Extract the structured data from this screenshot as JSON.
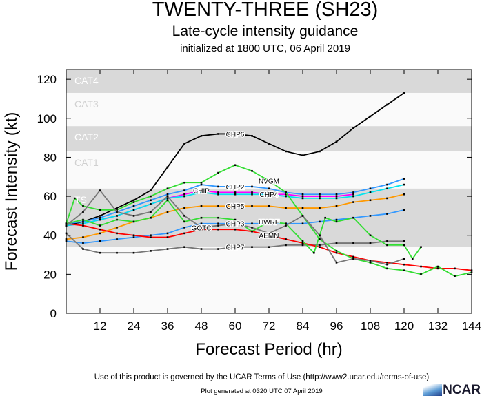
{
  "title": "TWENTY-THREE (SH23)",
  "subtitle": "Late-cycle intensity guidance",
  "initialized": "initialized at 1800 UTC, 06 April 2019",
  "footer": {
    "terms": "Use of this product is governed by the UCAR Terms of Use (http://www2.ucar.edu/terms-of-use)",
    "generated": "Plot generated at 0320 UTC   07 April 2019",
    "logo": "NCAR"
  },
  "chart_data": {
    "type": "line",
    "xlabel": "Forecast Period (hr)",
    "ylabel": "Forecast Intensity (kt)",
    "xlim": [
      0,
      144
    ],
    "ylim": [
      0,
      125
    ],
    "xticks": [
      12,
      24,
      36,
      48,
      60,
      72,
      84,
      96,
      108,
      120,
      132,
      144
    ],
    "yticks": [
      0,
      20,
      40,
      60,
      80,
      100,
      120
    ],
    "bands": [
      {
        "label": "TS",
        "from": 34,
        "to": 64,
        "color": "#d9d9d9"
      },
      {
        "label": "CAT1",
        "from": 64,
        "to": 83,
        "color": "#fafafa"
      },
      {
        "label": "CAT2",
        "from": 83,
        "to": 96,
        "color": "#d9d9d9"
      },
      {
        "label": "CAT3",
        "from": 96,
        "to": 113,
        "color": "#fafafa"
      },
      {
        "label": "CAT4",
        "from": 113,
        "to": 125,
        "color": "#d9d9d9"
      }
    ],
    "series": [
      {
        "name": "CHP6",
        "color": "#000000",
        "points": [
          [
            0,
            45
          ],
          [
            6,
            47
          ],
          [
            12,
            50
          ],
          [
            18,
            54
          ],
          [
            24,
            58
          ],
          [
            30,
            63
          ],
          [
            36,
            75
          ],
          [
            42,
            87
          ],
          [
            48,
            91
          ],
          [
            54,
            92
          ],
          [
            60,
            92
          ],
          [
            66,
            91
          ],
          [
            72,
            87
          ],
          [
            78,
            83
          ],
          [
            84,
            81
          ],
          [
            90,
            83
          ],
          [
            96,
            88
          ],
          [
            102,
            95
          ],
          [
            108,
            101
          ],
          [
            114,
            107
          ],
          [
            120,
            113
          ]
        ]
      },
      {
        "name": "CHP2",
        "color": "#3399ff",
        "points": [
          [
            0,
            46
          ],
          [
            6,
            47
          ],
          [
            12,
            49
          ],
          [
            18,
            52
          ],
          [
            24,
            55
          ],
          [
            30,
            58
          ],
          [
            36,
            61
          ],
          [
            42,
            63
          ],
          [
            48,
            66
          ],
          [
            54,
            65
          ],
          [
            60,
            65
          ],
          [
            66,
            65
          ],
          [
            72,
            64
          ],
          [
            78,
            62
          ],
          [
            84,
            61
          ],
          [
            90,
            61
          ],
          [
            96,
            61
          ],
          [
            102,
            62
          ],
          [
            108,
            64
          ],
          [
            114,
            66
          ],
          [
            120,
            69
          ]
        ]
      },
      {
        "name": "CHIP",
        "color": "#ff00ff",
        "points": [
          [
            0,
            45
          ],
          [
            6,
            46
          ],
          [
            12,
            48
          ],
          [
            18,
            50
          ],
          [
            24,
            53
          ],
          [
            30,
            56
          ],
          [
            36,
            59
          ],
          [
            42,
            61
          ],
          [
            48,
            63
          ],
          [
            54,
            62
          ],
          [
            60,
            62
          ],
          [
            66,
            62
          ],
          [
            72,
            61
          ],
          [
            78,
            61
          ],
          [
            84,
            60
          ],
          [
            90,
            60
          ],
          [
            96,
            60
          ],
          [
            102,
            61
          ]
        ]
      },
      {
        "name": "CHP4",
        "color": "#00e5ee",
        "points": [
          [
            0,
            45
          ],
          [
            6,
            46
          ],
          [
            12,
            48
          ],
          [
            18,
            50
          ],
          [
            24,
            53
          ],
          [
            30,
            56
          ],
          [
            36,
            59
          ],
          [
            42,
            60
          ],
          [
            48,
            62
          ],
          [
            54,
            61
          ],
          [
            60,
            61
          ],
          [
            66,
            61
          ],
          [
            72,
            61
          ],
          [
            78,
            60
          ],
          [
            84,
            59
          ],
          [
            90,
            59
          ],
          [
            96,
            59
          ],
          [
            102,
            60
          ],
          [
            108,
            62
          ],
          [
            114,
            64
          ],
          [
            120,
            66
          ]
        ]
      },
      {
        "name": "CHP5",
        "color": "#ff9900",
        "points": [
          [
            0,
            38
          ],
          [
            6,
            39
          ],
          [
            12,
            41
          ],
          [
            18,
            44
          ],
          [
            24,
            47
          ],
          [
            30,
            49
          ],
          [
            36,
            52
          ],
          [
            42,
            54
          ],
          [
            48,
            55
          ],
          [
            54,
            55
          ],
          [
            60,
            55
          ],
          [
            66,
            55
          ],
          [
            72,
            55
          ],
          [
            78,
            54
          ],
          [
            84,
            54
          ],
          [
            90,
            54
          ],
          [
            96,
            55
          ],
          [
            102,
            57
          ],
          [
            108,
            58
          ],
          [
            114,
            59
          ],
          [
            120,
            61
          ]
        ]
      },
      {
        "name": "CHP3",
        "color": "#3399ff",
        "points": [
          [
            0,
            37
          ],
          [
            6,
            36
          ],
          [
            12,
            37
          ],
          [
            18,
            38
          ],
          [
            24,
            39
          ],
          [
            30,
            40
          ],
          [
            36,
            41
          ],
          [
            42,
            44
          ],
          [
            48,
            46
          ],
          [
            54,
            46
          ],
          [
            60,
            46
          ],
          [
            66,
            46
          ],
          [
            72,
            46
          ],
          [
            78,
            46
          ],
          [
            84,
            46
          ],
          [
            90,
            47
          ],
          [
            96,
            48
          ],
          [
            102,
            49
          ],
          [
            108,
            50
          ],
          [
            114,
            51
          ],
          [
            120,
            53
          ]
        ]
      },
      {
        "name": "CHP7",
        "color": "#777777",
        "points": [
          [
            0,
            41
          ],
          [
            6,
            33
          ],
          [
            12,
            31
          ],
          [
            18,
            31
          ],
          [
            24,
            31
          ],
          [
            30,
            32
          ],
          [
            36,
            33
          ],
          [
            42,
            34
          ],
          [
            48,
            33
          ],
          [
            54,
            33
          ],
          [
            60,
            34
          ],
          [
            66,
            34
          ],
          [
            72,
            34
          ],
          [
            78,
            35
          ],
          [
            84,
            35
          ],
          [
            90,
            35
          ],
          [
            96,
            36
          ],
          [
            102,
            36
          ],
          [
            108,
            36
          ],
          [
            114,
            37
          ],
          [
            120,
            37
          ]
        ]
      },
      {
        "name": "AEMN",
        "color": "#ff0000",
        "points": [
          [
            0,
            46
          ],
          [
            6,
            45
          ],
          [
            12,
            43
          ],
          [
            18,
            41
          ],
          [
            24,
            40
          ],
          [
            30,
            39
          ],
          [
            36,
            39
          ],
          [
            42,
            41
          ],
          [
            48,
            43
          ],
          [
            54,
            43
          ],
          [
            60,
            43
          ],
          [
            66,
            42
          ],
          [
            72,
            40
          ],
          [
            78,
            38
          ],
          [
            84,
            36
          ],
          [
            90,
            34
          ],
          [
            96,
            31
          ],
          [
            102,
            29
          ],
          [
            108,
            27
          ],
          [
            114,
            26
          ],
          [
            120,
            25
          ],
          [
            126,
            24
          ],
          [
            132,
            23
          ],
          [
            138,
            23
          ],
          [
            144,
            22
          ]
        ]
      },
      {
        "name": "NVGM",
        "color": "#33dd33",
        "points": [
          [
            0,
            46
          ],
          [
            3,
            59
          ],
          [
            6,
            55
          ],
          [
            12,
            53
          ],
          [
            18,
            53
          ],
          [
            24,
            57
          ],
          [
            30,
            60
          ],
          [
            36,
            64
          ],
          [
            42,
            67
          ],
          [
            48,
            67
          ],
          [
            54,
            72
          ],
          [
            60,
            76
          ],
          [
            66,
            73
          ],
          [
            72,
            68
          ],
          [
            78,
            62
          ],
          [
            84,
            50
          ],
          [
            90,
            38
          ],
          [
            96,
            32
          ],
          [
            102,
            28
          ],
          [
            108,
            26
          ],
          [
            114,
            23
          ],
          [
            120,
            22
          ],
          [
            126,
            20
          ],
          [
            132,
            24
          ],
          [
            138,
            19
          ],
          [
            144,
            21
          ]
        ]
      },
      {
        "name": "HWRF",
        "color": "#33dd33",
        "points": [
          [
            0,
            46
          ],
          [
            6,
            48
          ],
          [
            12,
            45
          ],
          [
            18,
            48
          ],
          [
            24,
            47
          ],
          [
            30,
            49
          ],
          [
            36,
            58
          ],
          [
            42,
            47
          ],
          [
            48,
            49
          ],
          [
            54,
            49
          ],
          [
            60,
            48
          ],
          [
            66,
            42
          ],
          [
            72,
            47
          ],
          [
            78,
            46
          ],
          [
            84,
            37
          ],
          [
            88,
            31
          ],
          [
            92,
            49
          ],
          [
            96,
            47
          ],
          [
            102,
            49
          ],
          [
            108,
            40
          ],
          [
            114,
            35
          ],
          [
            120,
            35
          ],
          [
            123,
            28
          ],
          [
            126,
            34
          ]
        ]
      },
      {
        "name": "GOTC",
        "color": "#777777",
        "points": [
          [
            0,
            45
          ],
          [
            6,
            52
          ],
          [
            12,
            63
          ],
          [
            18,
            52
          ],
          [
            24,
            50
          ],
          [
            30,
            52
          ],
          [
            36,
            60
          ],
          [
            42,
            50
          ],
          [
            48,
            44
          ],
          [
            54,
            45
          ],
          [
            60,
            46
          ],
          [
            66,
            44
          ],
          [
            72,
            41
          ],
          [
            78,
            45
          ],
          [
            84,
            50
          ],
          [
            90,
            40
          ],
          [
            96,
            26
          ],
          [
            102,
            28
          ],
          [
            108,
            27
          ],
          [
            114,
            25
          ],
          [
            120,
            28
          ]
        ]
      }
    ]
  }
}
